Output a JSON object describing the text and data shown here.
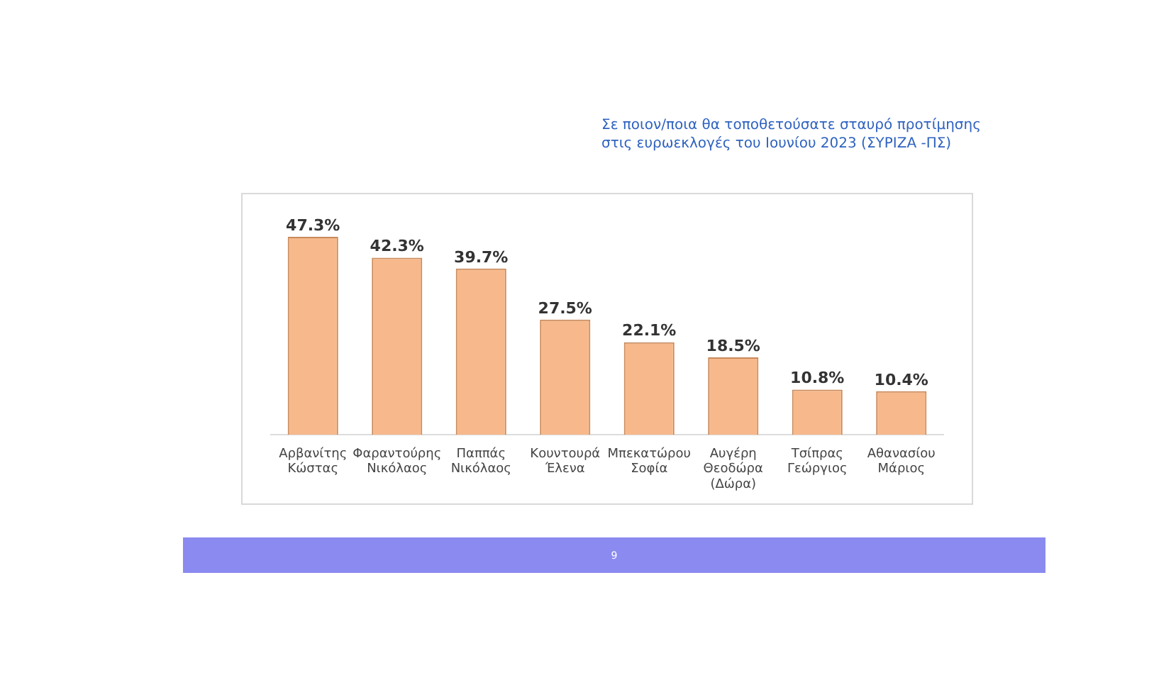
{
  "chart_data": {
    "type": "bar",
    "title": "Σε ποιον/ποια θα τοποθετούσατε σταυρό προτίμησης στις ευρωεκλογές του Ιουνίου 2023  (ΣΥΡΙΖΑ -ΠΣ)",
    "categories": [
      "Αρβανίτης Κώστας",
      "Φαραντούρης Νικόλαος",
      "Παππάς Νικόλαος",
      "Κουντουρά Έλενα",
      "Μπεκατώρου Σοφία",
      "Αυγέρη Θεοδώρα (Δώρα)",
      "Τσίπρας Γεώργιος",
      "Αθανασίου Μάριος"
    ],
    "values": [
      47.3,
      42.3,
      39.7,
      27.5,
      22.1,
      18.5,
      10.8,
      10.4
    ],
    "value_labels": [
      "47.3%",
      "42.3%",
      "39.7%",
      "27.5%",
      "22.1%",
      "18.5%",
      "10.8%",
      "10.4%"
    ],
    "color": "#f7b98b",
    "tick_labels": "x",
    "grid": false,
    "legend": false,
    "annotations": [
      "9"
    ]
  }
}
